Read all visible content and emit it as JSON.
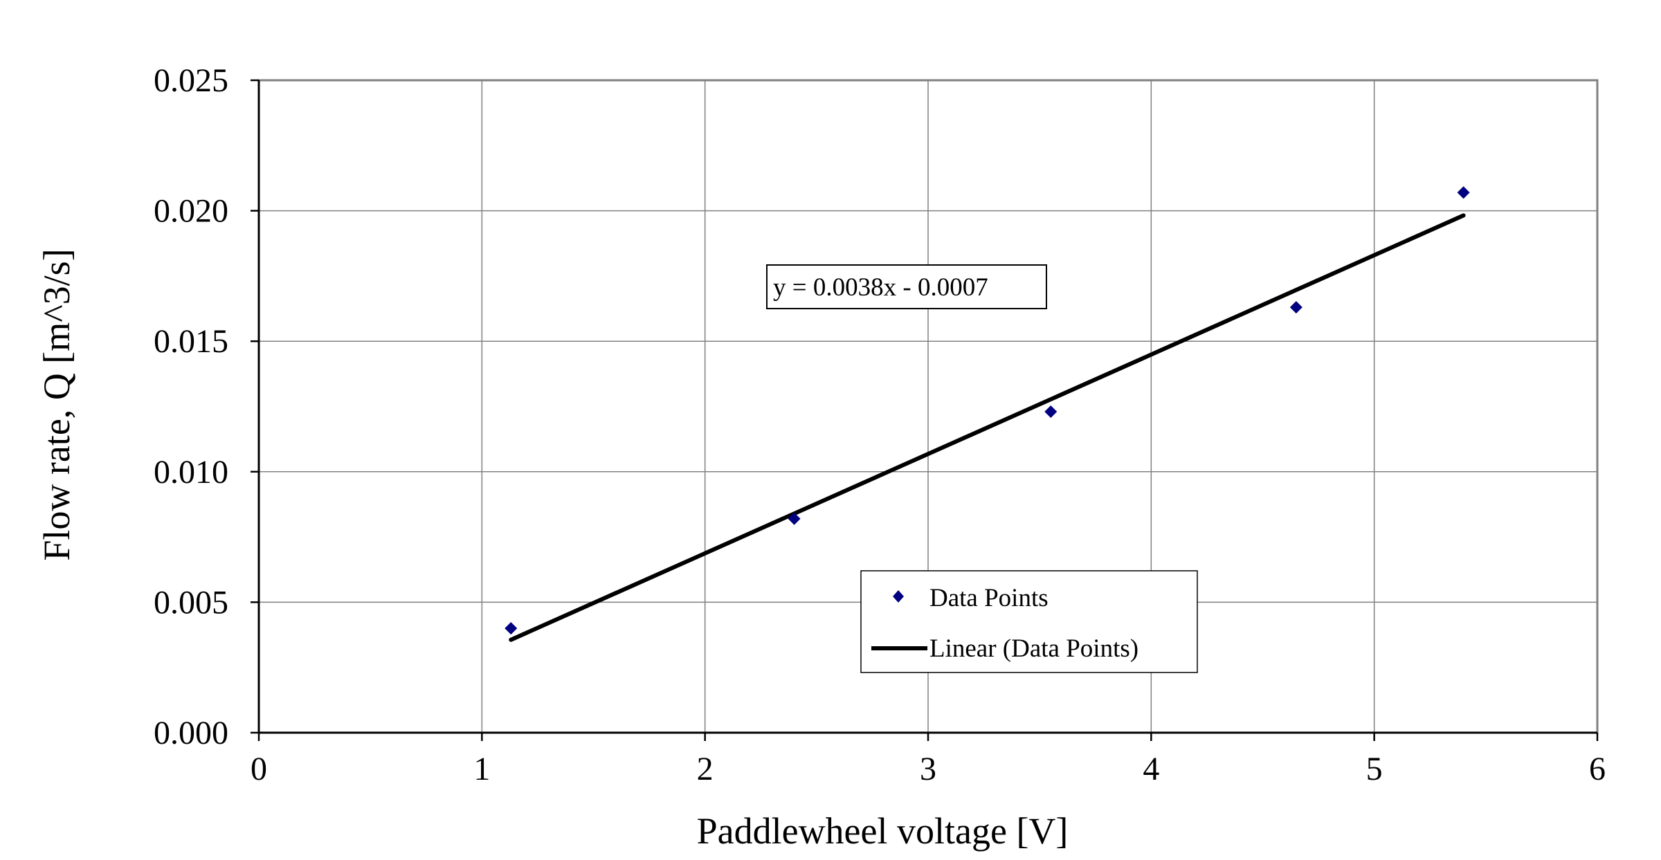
{
  "chart_data": {
    "type": "scatter",
    "xlabel": "Paddlewheel voltage [V]",
    "ylabel": "Flow rate,  Q [m^3/s]",
    "xlim": [
      0,
      6
    ],
    "ylim": [
      0.0,
      0.025
    ],
    "x_ticks": [
      0,
      1,
      2,
      3,
      4,
      5,
      6
    ],
    "x_tick_labels": [
      "0",
      "1",
      "2",
      "3",
      "4",
      "5",
      "6"
    ],
    "y_ticks": [
      0.0,
      0.005,
      0.01,
      0.015,
      0.02,
      0.025
    ],
    "y_tick_labels": [
      "0.000",
      "0.005",
      "0.010",
      "0.015",
      "0.020",
      "0.025"
    ],
    "grid": true,
    "series": [
      {
        "name": "Data Points",
        "kind": "scatter",
        "marker": "diamond",
        "color": "#000080",
        "x": [
          1.13,
          2.4,
          3.55,
          4.65,
          5.4
        ],
        "y": [
          0.004,
          0.0082,
          0.0123,
          0.0163,
          0.0207
        ]
      },
      {
        "name": "Linear (Data Points)",
        "kind": "line",
        "color": "#000000",
        "x": [
          1.13,
          5.4
        ],
        "y": [
          0.00356,
          0.01982
        ]
      }
    ],
    "trendline_equation": "y = 0.0038x - 0.0007",
    "legend_position": "lower-right"
  }
}
